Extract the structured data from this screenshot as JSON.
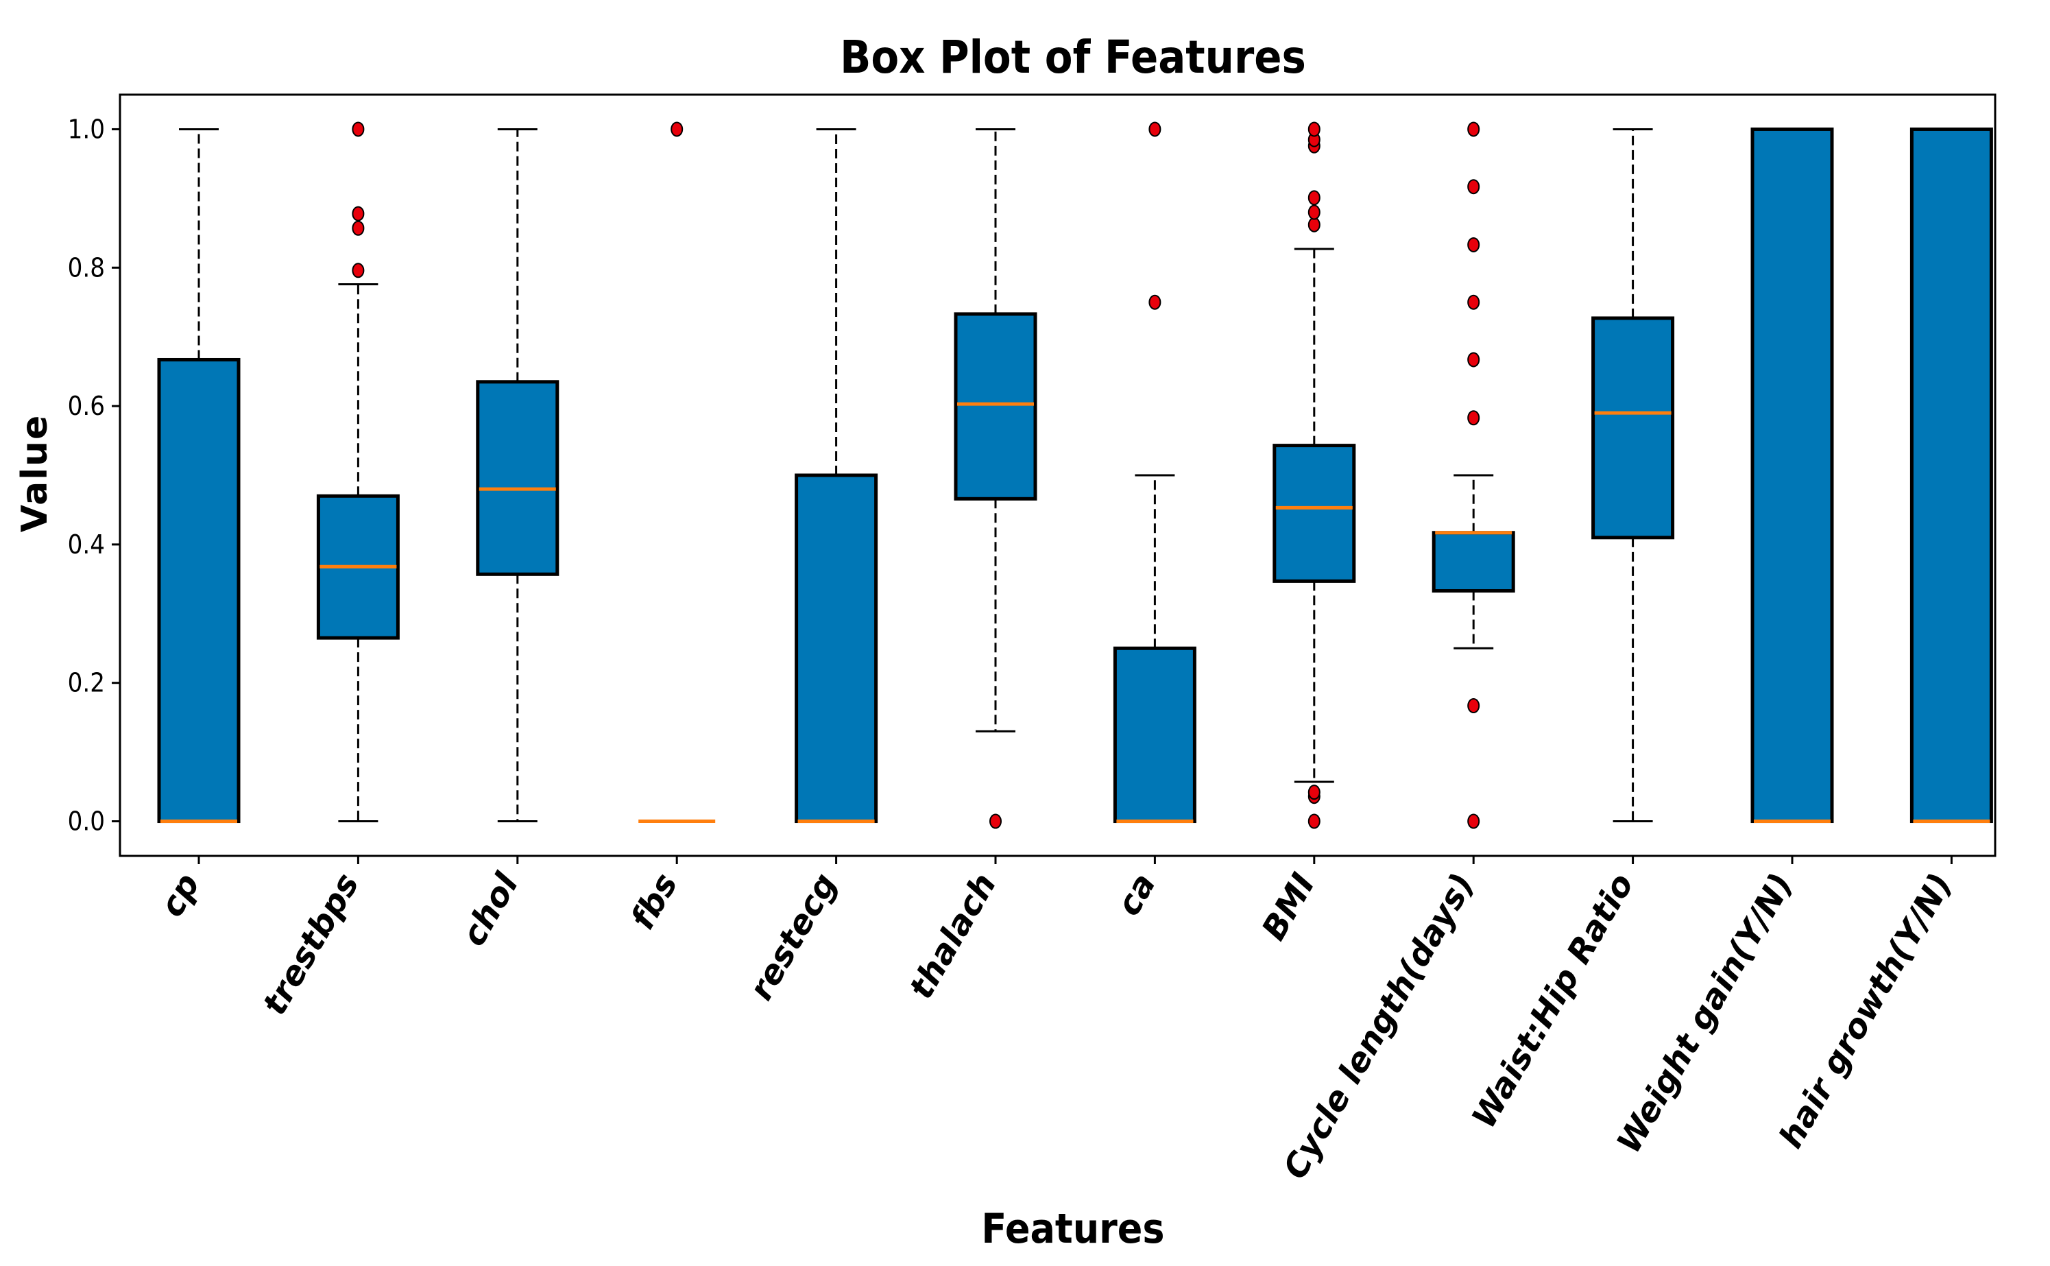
{
  "chart_data": {
    "type": "box",
    "title": "Box Plot of Features",
    "xlabel": "Features",
    "ylabel": "Value",
    "ylim": [
      -0.05,
      1.05
    ],
    "yticks": [
      0.0,
      0.2,
      0.4,
      0.6,
      0.8,
      1.0
    ],
    "ytick_labels": [
      "0.0",
      "0.2",
      "0.4",
      "0.6",
      "0.8",
      "1.0"
    ],
    "box_color": "#0077b6",
    "median_color": "#ff7f0e",
    "outlier_color": "#e8000b",
    "categories": [
      "cp",
      "trestbps",
      "chol",
      "fbs",
      "restecg",
      "thalach",
      "ca",
      "BMI",
      "Cycle length(days)",
      "Waist:Hip Ratio",
      "Weight gain(Y/N)",
      "hair growth(Y/N)"
    ],
    "boxes": [
      {
        "name": "cp",
        "whislo": 0.0,
        "q1": 0.0,
        "med": 0.0,
        "q3": 0.667,
        "whishi": 1.0,
        "fliers": []
      },
      {
        "name": "trestbps",
        "whislo": 0.0,
        "q1": 0.265,
        "med": 0.368,
        "q3": 0.47,
        "whishi": 0.776,
        "fliers": [
          0.796,
          0.857,
          0.878,
          1.0
        ]
      },
      {
        "name": "chol",
        "whislo": 0.0,
        "q1": 0.357,
        "med": 0.48,
        "q3": 0.635,
        "whishi": 1.0,
        "fliers": []
      },
      {
        "name": "fbs",
        "whislo": 0.0,
        "q1": 0.0,
        "med": 0.0,
        "q3": 0.0,
        "whishi": 0.0,
        "fliers": [
          1.0
        ]
      },
      {
        "name": "restecg",
        "whislo": 0.0,
        "q1": 0.0,
        "med": 0.0,
        "q3": 0.5,
        "whishi": 1.0,
        "fliers": []
      },
      {
        "name": "thalach",
        "whislo": 0.13,
        "q1": 0.466,
        "med": 0.603,
        "q3": 0.733,
        "whishi": 1.0,
        "fliers": [
          0.0
        ]
      },
      {
        "name": "ca",
        "whislo": 0.0,
        "q1": 0.0,
        "med": 0.0,
        "q3": 0.25,
        "whishi": 0.5,
        "fliers": [
          0.75,
          1.0
        ]
      },
      {
        "name": "BMI",
        "whislo": 0.057,
        "q1": 0.347,
        "med": 0.453,
        "q3": 0.543,
        "whishi": 0.827,
        "fliers": [
          0.0,
          0.036,
          0.042,
          0.862,
          0.88,
          0.901,
          0.976,
          0.985,
          1.0
        ]
      },
      {
        "name": "Cycle length(days)",
        "whislo": 0.25,
        "q1": 0.333,
        "med": 0.417,
        "q3": 0.417,
        "whishi": 0.5,
        "fliers": [
          0.0,
          0.167,
          0.583,
          0.667,
          0.75,
          0.833,
          0.917,
          1.0
        ]
      },
      {
        "name": "Waist:Hip Ratio",
        "whislo": 0.0,
        "q1": 0.41,
        "med": 0.59,
        "q3": 0.727,
        "whishi": 1.0,
        "fliers": []
      },
      {
        "name": "Weight gain(Y/N)",
        "whislo": 0.0,
        "q1": 0.0,
        "med": 0.0,
        "q3": 1.0,
        "whishi": 1.0,
        "fliers": []
      },
      {
        "name": "hair growth(Y/N)",
        "whislo": 0.0,
        "q1": 0.0,
        "med": 0.0,
        "q3": 1.0,
        "whishi": 1.0,
        "fliers": []
      }
    ]
  }
}
